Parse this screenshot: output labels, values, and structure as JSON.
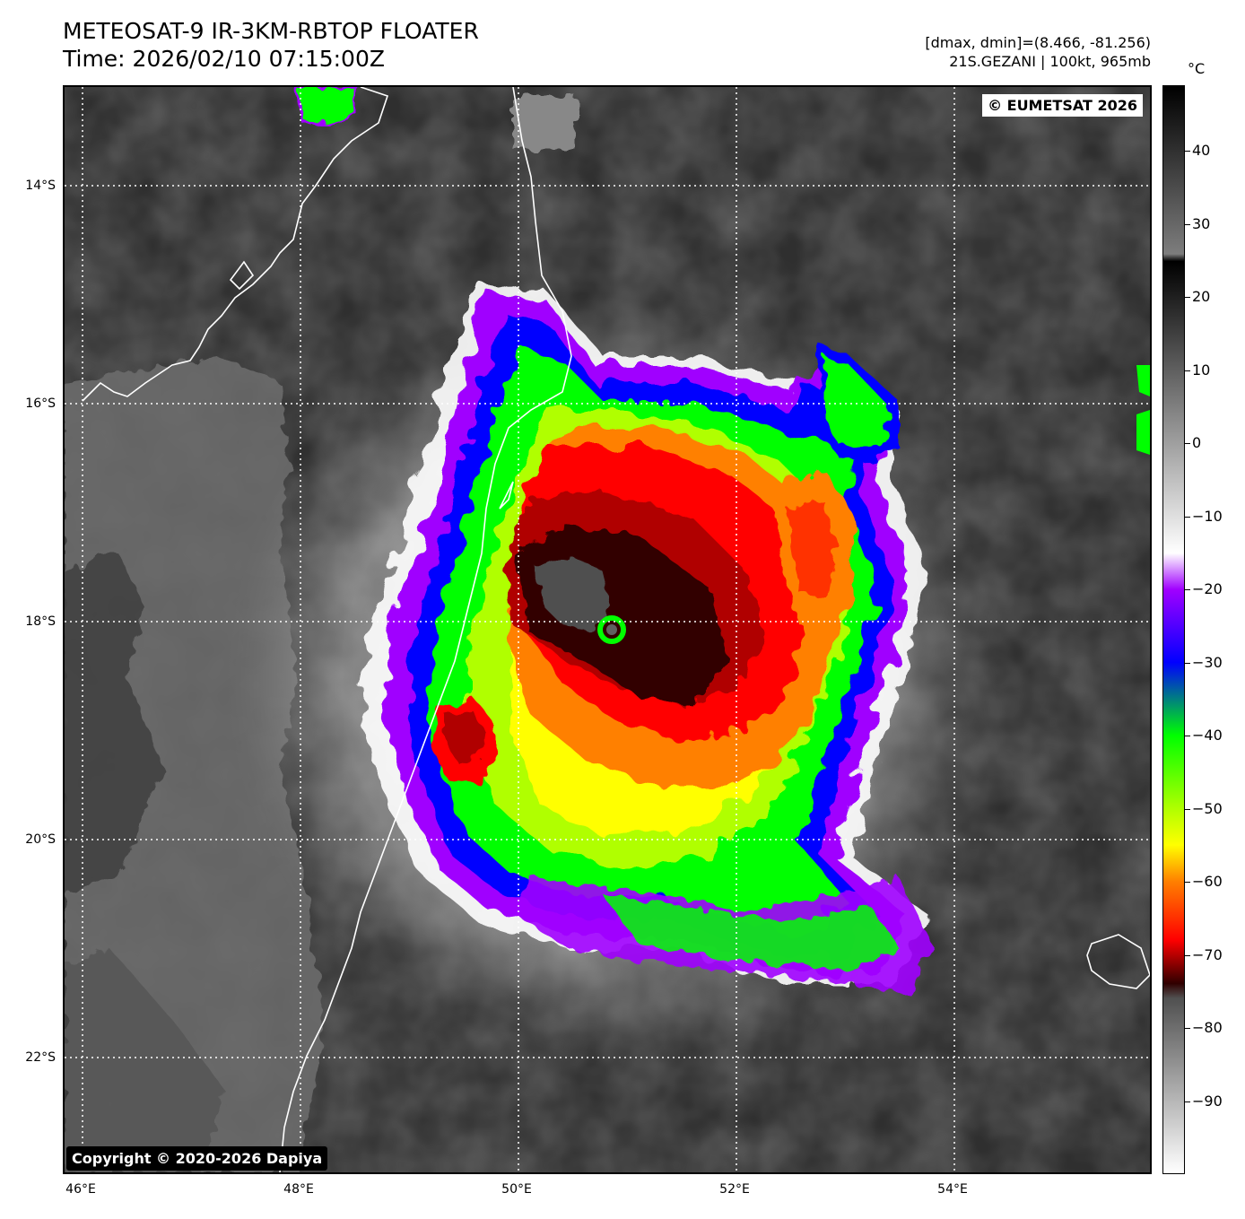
{
  "header": {
    "title_line1": "METEOSAT-9 IR-3KM-RBTOP FLOATER",
    "title_line2": "Time: 2026/02/10 07:15:00Z",
    "meta_line1": "[dmax, dmin]=(8.466, -81.256)",
    "meta_line2": "21S.GEZANI | 100kt, 965mb"
  },
  "map": {
    "credit_top": "© EUMETSAT 2026",
    "credit_bottom": "Copyright © 2020-2026 Dapiya",
    "lat_labels": [
      "14°S",
      "16°S",
      "18°S",
      "20°S",
      "22°S"
    ],
    "lon_labels": [
      "46°E",
      "48°E",
      "50°E",
      "52°E",
      "54°E"
    ],
    "lat_range": [
      -23.1,
      -13.1
    ],
    "lon_range": [
      45.85,
      55.85
    ],
    "storm_name": "21S.GEZANI",
    "storm_center": {
      "lat": -17.7,
      "lon": 50.5
    },
    "gridline_color": "#ffffff",
    "coastline_color": "#ffffff"
  },
  "colorbar": {
    "unit": "°C",
    "range": [
      -100,
      49
    ],
    "ticks": [
      40,
      30,
      20,
      10,
      0,
      -10,
      -20,
      -30,
      -40,
      -50,
      -60,
      -70,
      -80,
      -90
    ],
    "tick_labels": [
      "40",
      "30",
      "20",
      "10",
      "0",
      "−10",
      "−20",
      "−30",
      "−40",
      "−50",
      "−60",
      "−70",
      "−80",
      "−90"
    ],
    "stops": [
      {
        "t": 49,
        "color": "#000000"
      },
      {
        "t": 26,
        "color": "#7d7d7d"
      },
      {
        "t": 25,
        "color": "#000000"
      },
      {
        "t": -15,
        "color": "#ffffff"
      },
      {
        "t": -20,
        "color": "#a000ff"
      },
      {
        "t": -30,
        "color": "#0000ff"
      },
      {
        "t": -40,
        "color": "#00ff00"
      },
      {
        "t": -50,
        "color": "#b0ff00"
      },
      {
        "t": -55,
        "color": "#ffff00"
      },
      {
        "t": -60,
        "color": "#ff8000"
      },
      {
        "t": -68,
        "color": "#ff0000"
      },
      {
        "t": -74,
        "color": "#300000"
      },
      {
        "t": -76,
        "color": "#505050"
      },
      {
        "t": -100,
        "color": "#ffffff"
      }
    ]
  }
}
